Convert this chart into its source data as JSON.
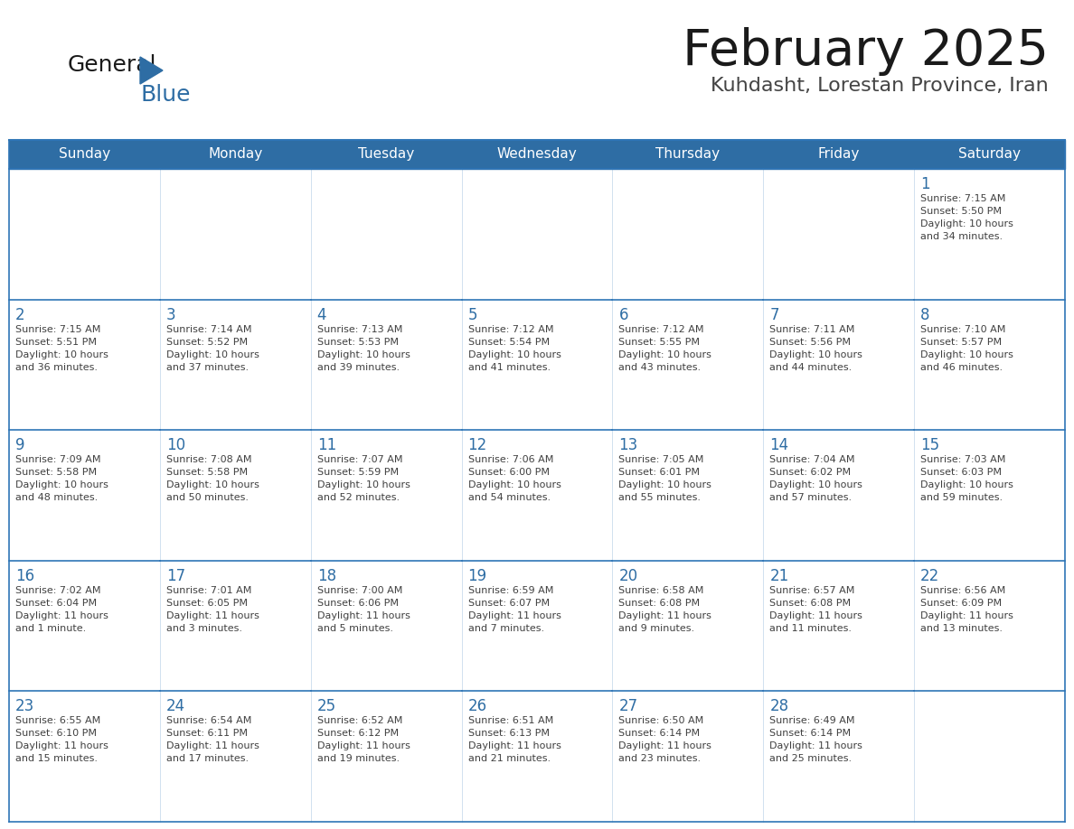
{
  "title": "February 2025",
  "subtitle": "Kuhdasht, Lorestan Province, Iran",
  "days_of_week": [
    "Sunday",
    "Monday",
    "Tuesday",
    "Wednesday",
    "Thursday",
    "Friday",
    "Saturday"
  ],
  "header_bg": "#2E6DA4",
  "header_text": "#FFFFFF",
  "cell_bg_white": "#FFFFFF",
  "cell_bg_gray": "#F0F0F0",
  "border_color": "#2E75B6",
  "day_num_color": "#2E6DA4",
  "cell_text_color": "#404040",
  "title_color": "#1a1a1a",
  "subtitle_color": "#444444",
  "logo_color1": "#1a1a1a",
  "logo_color2": "#2E6DA4",
  "logo_triangle_color": "#2E6DA4",
  "calendar": [
    [
      null,
      null,
      null,
      null,
      null,
      null,
      {
        "day": 1,
        "sunrise": "7:15 AM",
        "sunset": "5:50 PM",
        "daylight": "10 hours\nand 34 minutes."
      }
    ],
    [
      {
        "day": 2,
        "sunrise": "7:15 AM",
        "sunset": "5:51 PM",
        "daylight": "10 hours\nand 36 minutes."
      },
      {
        "day": 3,
        "sunrise": "7:14 AM",
        "sunset": "5:52 PM",
        "daylight": "10 hours\nand 37 minutes."
      },
      {
        "day": 4,
        "sunrise": "7:13 AM",
        "sunset": "5:53 PM",
        "daylight": "10 hours\nand 39 minutes."
      },
      {
        "day": 5,
        "sunrise": "7:12 AM",
        "sunset": "5:54 PM",
        "daylight": "10 hours\nand 41 minutes."
      },
      {
        "day": 6,
        "sunrise": "7:12 AM",
        "sunset": "5:55 PM",
        "daylight": "10 hours\nand 43 minutes."
      },
      {
        "day": 7,
        "sunrise": "7:11 AM",
        "sunset": "5:56 PM",
        "daylight": "10 hours\nand 44 minutes."
      },
      {
        "day": 8,
        "sunrise": "7:10 AM",
        "sunset": "5:57 PM",
        "daylight": "10 hours\nand 46 minutes."
      }
    ],
    [
      {
        "day": 9,
        "sunrise": "7:09 AM",
        "sunset": "5:58 PM",
        "daylight": "10 hours\nand 48 minutes."
      },
      {
        "day": 10,
        "sunrise": "7:08 AM",
        "sunset": "5:58 PM",
        "daylight": "10 hours\nand 50 minutes."
      },
      {
        "day": 11,
        "sunrise": "7:07 AM",
        "sunset": "5:59 PM",
        "daylight": "10 hours\nand 52 minutes."
      },
      {
        "day": 12,
        "sunrise": "7:06 AM",
        "sunset": "6:00 PM",
        "daylight": "10 hours\nand 54 minutes."
      },
      {
        "day": 13,
        "sunrise": "7:05 AM",
        "sunset": "6:01 PM",
        "daylight": "10 hours\nand 55 minutes."
      },
      {
        "day": 14,
        "sunrise": "7:04 AM",
        "sunset": "6:02 PM",
        "daylight": "10 hours\nand 57 minutes."
      },
      {
        "day": 15,
        "sunrise": "7:03 AM",
        "sunset": "6:03 PM",
        "daylight": "10 hours\nand 59 minutes."
      }
    ],
    [
      {
        "day": 16,
        "sunrise": "7:02 AM",
        "sunset": "6:04 PM",
        "daylight": "11 hours\nand 1 minute."
      },
      {
        "day": 17,
        "sunrise": "7:01 AM",
        "sunset": "6:05 PM",
        "daylight": "11 hours\nand 3 minutes."
      },
      {
        "day": 18,
        "sunrise": "7:00 AM",
        "sunset": "6:06 PM",
        "daylight": "11 hours\nand 5 minutes."
      },
      {
        "day": 19,
        "sunrise": "6:59 AM",
        "sunset": "6:07 PM",
        "daylight": "11 hours\nand 7 minutes."
      },
      {
        "day": 20,
        "sunrise": "6:58 AM",
        "sunset": "6:08 PM",
        "daylight": "11 hours\nand 9 minutes."
      },
      {
        "day": 21,
        "sunrise": "6:57 AM",
        "sunset": "6:08 PM",
        "daylight": "11 hours\nand 11 minutes."
      },
      {
        "day": 22,
        "sunrise": "6:56 AM",
        "sunset": "6:09 PM",
        "daylight": "11 hours\nand 13 minutes."
      }
    ],
    [
      {
        "day": 23,
        "sunrise": "6:55 AM",
        "sunset": "6:10 PM",
        "daylight": "11 hours\nand 15 minutes."
      },
      {
        "day": 24,
        "sunrise": "6:54 AM",
        "sunset": "6:11 PM",
        "daylight": "11 hours\nand 17 minutes."
      },
      {
        "day": 25,
        "sunrise": "6:52 AM",
        "sunset": "6:12 PM",
        "daylight": "11 hours\nand 19 minutes."
      },
      {
        "day": 26,
        "sunrise": "6:51 AM",
        "sunset": "6:13 PM",
        "daylight": "11 hours\nand 21 minutes."
      },
      {
        "day": 27,
        "sunrise": "6:50 AM",
        "sunset": "6:14 PM",
        "daylight": "11 hours\nand 23 minutes."
      },
      {
        "day": 28,
        "sunrise": "6:49 AM",
        "sunset": "6:14 PM",
        "daylight": "11 hours\nand 25 minutes."
      },
      null
    ]
  ]
}
